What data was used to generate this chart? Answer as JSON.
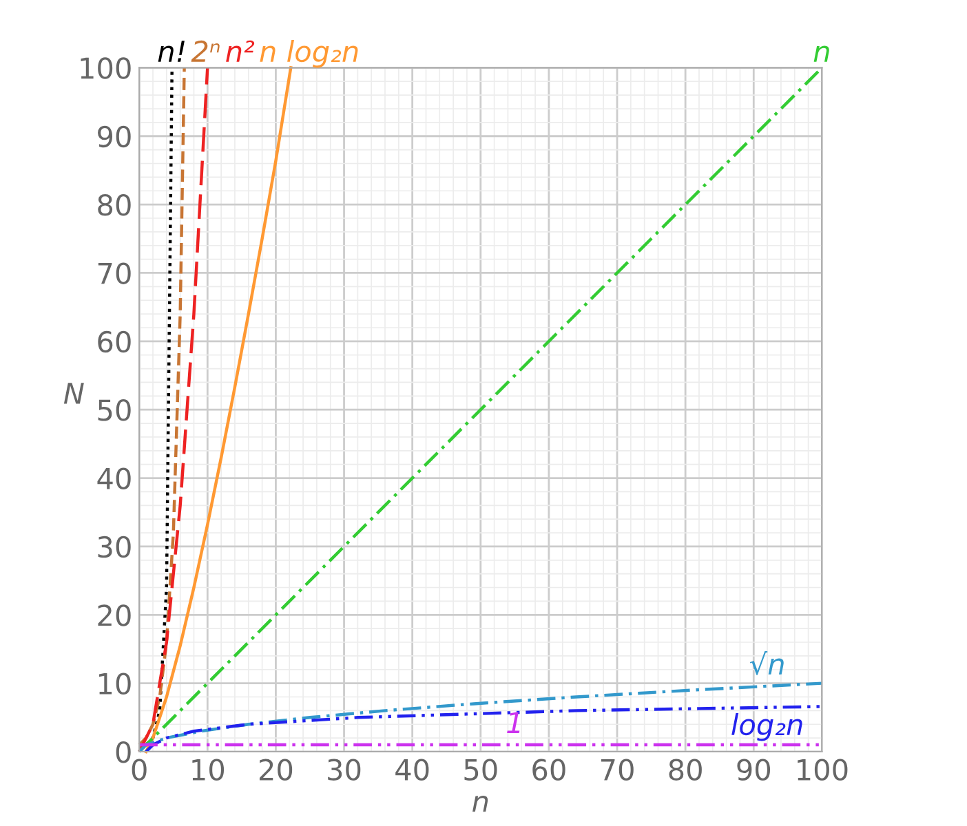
{
  "chart_data": {
    "type": "line",
    "xlabel": "n",
    "ylabel": "N",
    "xlim": [
      0,
      100
    ],
    "ylim": [
      0,
      100
    ],
    "grid": true,
    "legend": false,
    "xticks": [
      0,
      {
        "value": 2,
        "label": null
      },
      {
        "value": 4,
        "label": null
      },
      {
        "value": 6,
        "label": null
      },
      {
        "value": 8,
        "label": null
      },
      10,
      {
        "value": 12,
        "label": null
      },
      {
        "value": 14,
        "label": null
      },
      {
        "value": 16,
        "label": null
      },
      {
        "value": 18,
        "label": null
      },
      20,
      {
        "value": 22,
        "label": null
      },
      {
        "value": 24,
        "label": null
      },
      {
        "value": 26,
        "label": null
      },
      {
        "value": 28,
        "label": null
      },
      30,
      {
        "value": 32,
        "label": null
      },
      {
        "value": 34,
        "label": null
      },
      {
        "value": 36,
        "label": null
      },
      {
        "value": 38,
        "label": null
      },
      40,
      {
        "value": 42,
        "label": null
      },
      {
        "value": 44,
        "label": null
      },
      {
        "value": 46,
        "label": null
      },
      {
        "value": 48,
        "label": null
      },
      50,
      {
        "value": 52,
        "label": null
      },
      {
        "value": 54,
        "label": null
      },
      {
        "value": 56,
        "label": null
      },
      {
        "value": 58,
        "label": null
      },
      60,
      {
        "value": 62,
        "label": null
      },
      {
        "value": 64,
        "label": null
      },
      {
        "value": 66,
        "label": null
      },
      {
        "value": 68,
        "label": null
      },
      70,
      {
        "value": 72,
        "label": null
      },
      {
        "value": 74,
        "label": null
      },
      {
        "value": 76,
        "label": null
      },
      {
        "value": 78,
        "label": null
      },
      80,
      {
        "value": 82,
        "label": null
      },
      {
        "value": 84,
        "label": null
      },
      {
        "value": 86,
        "label": null
      },
      {
        "value": 88,
        "label": null
      },
      90,
      {
        "value": 92,
        "label": null
      },
      {
        "value": 94,
        "label": null
      },
      {
        "value": 96,
        "label": null
      },
      {
        "value": 98,
        "label": null
      },
      100
    ],
    "yticks": [
      0,
      {
        "value": 2,
        "label": null
      },
      {
        "value": 4,
        "label": null
      },
      {
        "value": 6,
        "label": null
      },
      {
        "value": 8,
        "label": null
      },
      10,
      {
        "value": 12,
        "label": null
      },
      {
        "value": 14,
        "label": null
      },
      {
        "value": 16,
        "label": null
      },
      {
        "value": 18,
        "label": null
      },
      20,
      {
        "value": 22,
        "label": null
      },
      {
        "value": 24,
        "label": null
      },
      {
        "value": 26,
        "label": null
      },
      {
        "value": 28,
        "label": null
      },
      30,
      {
        "value": 32,
        "label": null
      },
      {
        "value": 34,
        "label": null
      },
      {
        "value": 36,
        "label": null
      },
      {
        "value": 38,
        "label": null
      },
      40,
      {
        "value": 42,
        "label": null
      },
      {
        "value": 44,
        "label": null
      },
      {
        "value": 46,
        "label": null
      },
      {
        "value": 48,
        "label": null
      },
      50,
      {
        "value": 52,
        "label": null
      },
      {
        "value": 54,
        "label": null
      },
      {
        "value": 56,
        "label": null
      },
      {
        "value": 58,
        "label": null
      },
      60,
      {
        "value": 62,
        "label": null
      },
      {
        "value": 64,
        "label": null
      },
      {
        "value": 66,
        "label": null
      },
      {
        "value": 68,
        "label": null
      },
      70,
      {
        "value": 72,
        "label": null
      },
      {
        "value": 74,
        "label": null
      },
      {
        "value": 76,
        "label": null
      },
      {
        "value": 78,
        "label": null
      },
      80,
      {
        "value": 82,
        "label": null
      },
      {
        "value": 84,
        "label": null
      },
      {
        "value": 86,
        "label": null
      },
      {
        "value": 88,
        "label": null
      },
      90,
      {
        "value": 92,
        "label": null
      },
      {
        "value": 94,
        "label": null
      },
      {
        "value": 96,
        "label": null
      },
      {
        "value": 98,
        "label": null
      },
      100
    ],
    "series": [
      {
        "name": "n!",
        "color": "#000000",
        "line_style": "dotted",
        "x": [
          0,
          1,
          2,
          3,
          4,
          4.8
        ],
        "values": [
          1,
          1,
          2,
          6,
          24,
          100
        ]
      },
      {
        "name": "2ⁿ",
        "color": "#c87533",
        "line_style": "dashed",
        "x": [
          0,
          1,
          2,
          3,
          4,
          5,
          6,
          6.6
        ],
        "values": [
          1,
          2,
          4,
          8,
          16,
          32,
          64,
          100
        ]
      },
      {
        "name": "n²",
        "color": "#ee2222",
        "line_style": "longdash",
        "x": [
          0,
          2,
          4,
          6,
          8,
          10
        ],
        "values": [
          0,
          4,
          16,
          36,
          64,
          100
        ]
      },
      {
        "name": "n log₂n",
        "color": "#ff9933",
        "line_style": "solid",
        "x": [
          1,
          2,
          4,
          6,
          8,
          10,
          12,
          14,
          16,
          18,
          20,
          22.2
        ],
        "values": [
          0,
          2,
          8,
          15.5,
          24,
          33.2,
          43,
          53.3,
          64,
          75,
          86.4,
          100
        ]
      },
      {
        "name": "n",
        "color": "#33cc33",
        "line_style": "dashdot",
        "x": [
          0,
          100
        ],
        "values": [
          0,
          100
        ]
      },
      {
        "name": "√n",
        "color": "#3399cc",
        "line_style": "dashdot",
        "x": [
          0,
          1,
          4,
          9,
          16,
          25,
          36,
          49,
          64,
          81,
          100
        ],
        "values": [
          0,
          1,
          2,
          3,
          4,
          5,
          6,
          7,
          8,
          9,
          10
        ]
      },
      {
        "name": "log₂n",
        "color": "#2222ee",
        "line_style": "dashdotdot",
        "x": [
          1,
          2,
          4,
          8,
          16,
          32,
          64,
          100
        ],
        "values": [
          0,
          1,
          2,
          3,
          4,
          5,
          6,
          6.6
        ]
      },
      {
        "name": "1",
        "color": "#cc33ee",
        "line_style": "dashdotdot",
        "x": [
          0,
          100
        ],
        "values": [
          1,
          1
        ]
      }
    ]
  }
}
